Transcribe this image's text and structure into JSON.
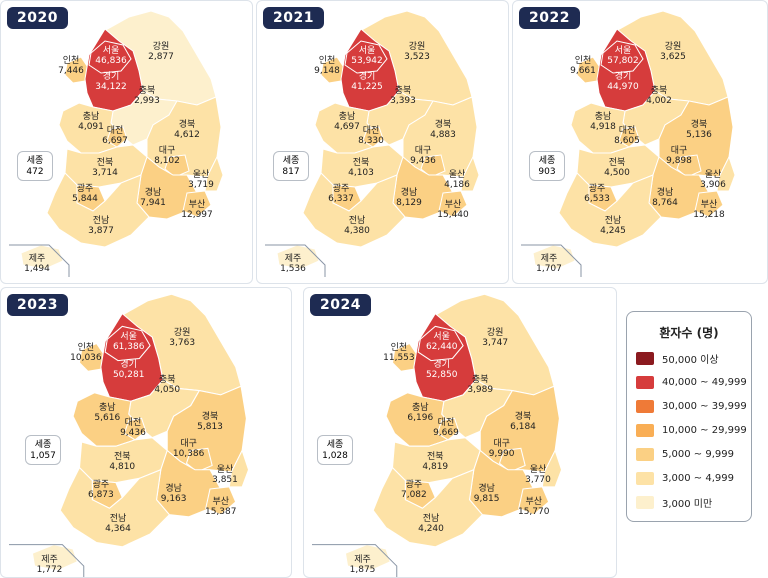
{
  "scale_colors": {
    "s50k": "#8b1a1f",
    "s40k": "#d63c3c",
    "s30k": "#ef7a37",
    "s10k": "#f9ae55",
    "s5k": "#fbd084",
    "s3k": "#fde2a6",
    "s0": "#fdf0cd"
  },
  "legend": {
    "title": "환자수 (명)",
    "items": [
      {
        "label": "50,000 이상",
        "color": "#8b1a1f"
      },
      {
        "label": "40,000 ~ 49,999",
        "color": "#d63c3c"
      },
      {
        "label": "30,000 ~ 39,999",
        "color": "#ef7a37"
      },
      {
        "label": "10,000 ~ 29,999",
        "color": "#f9ae55"
      },
      {
        "label": "5,000 ~ 9,999",
        "color": "#fbd084"
      },
      {
        "label": "3,000 ~ 4,999",
        "color": "#fde2a6"
      },
      {
        "label": "3,000 미만",
        "color": "#fdf0cd"
      }
    ]
  },
  "years": [
    {
      "year": "2020",
      "regions": {
        "서울": {
          "name": "서울",
          "value": "46,836",
          "n": 46836
        },
        "경기": {
          "name": "경기",
          "value": "34,122",
          "n": 34122
        },
        "인천": {
          "name": "인천",
          "value": "7,446",
          "n": 7446
        },
        "강원": {
          "name": "강원",
          "value": "2,877",
          "n": 2877
        },
        "충북": {
          "name": "충북",
          "value": "2,993",
          "n": 2993
        },
        "충남": {
          "name": "충남",
          "value": "4,091",
          "n": 4091
        },
        "대전": {
          "name": "대전",
          "value": "6,697",
          "n": 6697
        },
        "경북": {
          "name": "경북",
          "value": "4,612",
          "n": 4612
        },
        "세종": {
          "name": "세종",
          "value": "472",
          "n": 472
        },
        "대구": {
          "name": "대구",
          "value": "8,102",
          "n": 8102
        },
        "전북": {
          "name": "전북",
          "value": "3,714",
          "n": 3714
        },
        "울산": {
          "name": "울산",
          "value": "3,719",
          "n": 3719
        },
        "광주": {
          "name": "광주",
          "value": "5,844",
          "n": 5844
        },
        "경남": {
          "name": "경남",
          "value": "7,941",
          "n": 7941
        },
        "부산": {
          "name": "부산",
          "value": "12,997",
          "n": 12997
        },
        "전남": {
          "name": "전남",
          "value": "3,877",
          "n": 3877
        },
        "제주": {
          "name": "제주",
          "value": "1,494",
          "n": 1494
        }
      }
    },
    {
      "year": "2021",
      "regions": {
        "서울": {
          "name": "서울",
          "value": "53,942",
          "n": 53942
        },
        "경기": {
          "name": "경기",
          "value": "41,225",
          "n": 41225
        },
        "인천": {
          "name": "인천",
          "value": "9,148",
          "n": 9148
        },
        "강원": {
          "name": "강원",
          "value": "3,523",
          "n": 3523
        },
        "충북": {
          "name": "충북",
          "value": "3,393",
          "n": 3393
        },
        "충남": {
          "name": "충남",
          "value": "4,697",
          "n": 4697
        },
        "대전": {
          "name": "대전",
          "value": "8,330",
          "n": 8330
        },
        "경북": {
          "name": "경북",
          "value": "4,883",
          "n": 4883
        },
        "세종": {
          "name": "세종",
          "value": "817",
          "n": 817
        },
        "대구": {
          "name": "대구",
          "value": "9,436",
          "n": 9436
        },
        "전북": {
          "name": "전북",
          "value": "4,103",
          "n": 4103
        },
        "울산": {
          "name": "울산",
          "value": "4,186",
          "n": 4186
        },
        "광주": {
          "name": "광주",
          "value": "6,337",
          "n": 6337
        },
        "경남": {
          "name": "경남",
          "value": "8,129",
          "n": 8129
        },
        "부산": {
          "name": "부산",
          "value": "15,440",
          "n": 15440
        },
        "전남": {
          "name": "전남",
          "value": "4,380",
          "n": 4380
        },
        "제주": {
          "name": "제주",
          "value": "1,536",
          "n": 1536
        }
      }
    },
    {
      "year": "2022",
      "regions": {
        "서울": {
          "name": "서울",
          "value": "57,802",
          "n": 57802
        },
        "경기": {
          "name": "경기",
          "value": "44,970",
          "n": 44970
        },
        "인천": {
          "name": "인천",
          "value": "9,661",
          "n": 9661
        },
        "강원": {
          "name": "강원",
          "value": "3,625",
          "n": 3625
        },
        "충북": {
          "name": "충북",
          "value": "4,002",
          "n": 4002
        },
        "충남": {
          "name": "충남",
          "value": "4,918",
          "n": 4918
        },
        "대전": {
          "name": "대전",
          "value": "8,605",
          "n": 8605
        },
        "경북": {
          "name": "경북",
          "value": "5,136",
          "n": 5136
        },
        "세종": {
          "name": "세종",
          "value": "903",
          "n": 903
        },
        "대구": {
          "name": "대구",
          "value": "9,898",
          "n": 9898
        },
        "전북": {
          "name": "전북",
          "value": "4,500",
          "n": 4500
        },
        "울산": {
          "name": "울산",
          "value": "3,906",
          "n": 3906
        },
        "광주": {
          "name": "광주",
          "value": "6,533",
          "n": 6533
        },
        "경남": {
          "name": "경남",
          "value": "8,764",
          "n": 8764
        },
        "부산": {
          "name": "부산",
          "value": "15,218",
          "n": 15218
        },
        "전남": {
          "name": "전남",
          "value": "4,245",
          "n": 4245
        },
        "제주": {
          "name": "제주",
          "value": "1,707",
          "n": 1707
        }
      }
    },
    {
      "year": "2023",
      "regions": {
        "서울": {
          "name": "서울",
          "value": "61,386",
          "n": 61386
        },
        "경기": {
          "name": "경기",
          "value": "50,281",
          "n": 50281
        },
        "인천": {
          "name": "인천",
          "value": "10,036",
          "n": 10036
        },
        "강원": {
          "name": "강원",
          "value": "3,763",
          "n": 3763
        },
        "충북": {
          "name": "충북",
          "value": "4,050",
          "n": 4050
        },
        "충남": {
          "name": "충남",
          "value": "5,616",
          "n": 5616
        },
        "대전": {
          "name": "대전",
          "value": "9,436",
          "n": 9436
        },
        "경북": {
          "name": "경북",
          "value": "5,813",
          "n": 5813
        },
        "세종": {
          "name": "세종",
          "value": "1,057",
          "n": 1057
        },
        "대구": {
          "name": "대구",
          "value": "10,386",
          "n": 10386
        },
        "전북": {
          "name": "전북",
          "value": "4,810",
          "n": 4810
        },
        "울산": {
          "name": "울산",
          "value": "3,851",
          "n": 3851
        },
        "광주": {
          "name": "광주",
          "value": "6,873",
          "n": 6873
        },
        "경남": {
          "name": "경남",
          "value": "9,163",
          "n": 9163
        },
        "부산": {
          "name": "부산",
          "value": "15,387",
          "n": 15387
        },
        "전남": {
          "name": "전남",
          "value": "4,364",
          "n": 4364
        },
        "제주": {
          "name": "제주",
          "value": "1,772",
          "n": 1772
        }
      }
    },
    {
      "year": "2024",
      "regions": {
        "서울": {
          "name": "서울",
          "value": "62,440",
          "n": 62440
        },
        "경기": {
          "name": "경기",
          "value": "52,850",
          "n": 52850
        },
        "인천": {
          "name": "인천",
          "value": "11,553",
          "n": 11553
        },
        "강원": {
          "name": "강원",
          "value": "3,747",
          "n": 3747
        },
        "충북": {
          "name": "충북",
          "value": "3,989",
          "n": 3989
        },
        "충남": {
          "name": "충남",
          "value": "6,196",
          "n": 6196
        },
        "대전": {
          "name": "대전",
          "value": "9,669",
          "n": 9669
        },
        "경북": {
          "name": "경북",
          "value": "6,184",
          "n": 6184
        },
        "세종": {
          "name": "세종",
          "value": "1,028",
          "n": 1028
        },
        "대구": {
          "name": "대구",
          "value": "9,990",
          "n": 9990
        },
        "전북": {
          "name": "전북",
          "value": "4,819",
          "n": 4819
        },
        "울산": {
          "name": "울산",
          "value": "3,770",
          "n": 3770
        },
        "광주": {
          "name": "광주",
          "value": "7,082",
          "n": 7082
        },
        "경남": {
          "name": "경남",
          "value": "9,815",
          "n": 9815
        },
        "부산": {
          "name": "부산",
          "value": "15,770",
          "n": 15770
        },
        "전남": {
          "name": "전남",
          "value": "4,240",
          "n": 4240
        },
        "제주": {
          "name": "제주",
          "value": "1,875",
          "n": 1875
        }
      }
    }
  ]
}
